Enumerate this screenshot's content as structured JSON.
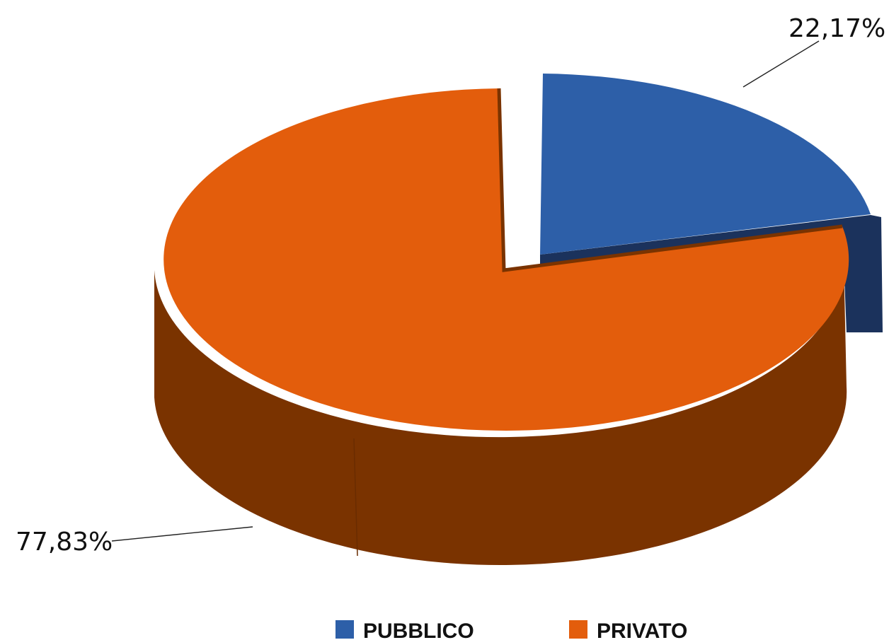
{
  "chart_data": {
    "type": "pie",
    "style": "3d-exploded",
    "title": "",
    "legend_position": "bottom",
    "series": [
      {
        "name": "",
        "slices": [
          {
            "label": "PUBBLICO",
            "value": 22.17,
            "display": "22,17%",
            "color": "#2d5fa8",
            "side_color": "#1b325c"
          },
          {
            "label": "PRIVATO",
            "value": 77.83,
            "display": "77,83%",
            "color": "#e35d0c",
            "side_color": "#7a3300"
          }
        ]
      }
    ]
  },
  "legend": {
    "items": [
      {
        "label": "PUBBLICO",
        "color": "#2d5fa8"
      },
      {
        "label": "PRIVATO",
        "color": "#e35d0c"
      }
    ]
  }
}
